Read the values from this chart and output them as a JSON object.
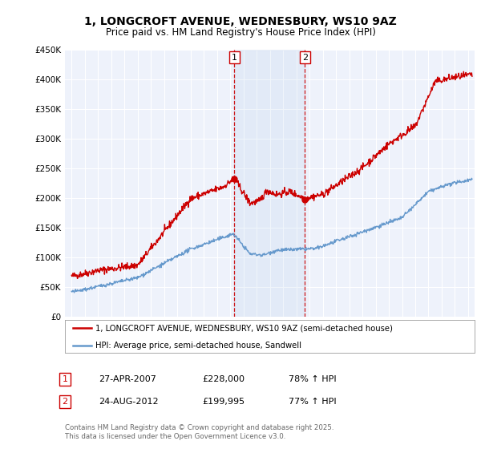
{
  "title_line1": "1, LONGCROFT AVENUE, WEDNESBURY, WS10 9AZ",
  "title_line2": "Price paid vs. HM Land Registry's House Price Index (HPI)",
  "background_color": "#ffffff",
  "plot_bg_color": "#eef2fb",
  "grid_color": "#ffffff",
  "red_line_color": "#cc0000",
  "blue_line_color": "#6699cc",
  "sale1_date": "27-APR-2007",
  "sale1_price": 228000,
  "sale1_label": "78% ↑ HPI",
  "sale2_date": "24-AUG-2012",
  "sale2_price": 199995,
  "sale2_label": "77% ↑ HPI",
  "sale1_year": 2007.32,
  "sale2_year": 2012.65,
  "legend_line1": "1, LONGCROFT AVENUE, WEDNESBURY, WS10 9AZ (semi-detached house)",
  "legend_line2": "HPI: Average price, semi-detached house, Sandwell",
  "footnote": "Contains HM Land Registry data © Crown copyright and database right 2025.\nThis data is licensed under the Open Government Licence v3.0.",
  "xmin": 1994.5,
  "xmax": 2025.5,
  "ymin": 0,
  "ymax": 450000
}
